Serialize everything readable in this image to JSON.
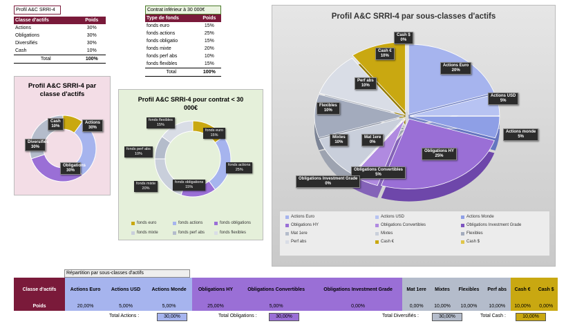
{
  "table1": {
    "title": "Profil A&C SRRI-4",
    "headers": [
      "Classe d'actifs",
      "Poids"
    ],
    "rows": [
      [
        "Actions",
        "30%"
      ],
      [
        "Obligations",
        "30%"
      ],
      [
        "Diversifiés",
        "30%"
      ],
      [
        "Cash",
        "10%"
      ]
    ],
    "total": [
      "Total",
      "100%"
    ]
  },
  "table2": {
    "title": "Contrat inférieur à 30 000€",
    "headers": [
      "Type de fonds",
      "Poids"
    ],
    "rows": [
      [
        "fonds euro",
        "15%"
      ],
      [
        "fonds actions",
        "25%"
      ],
      [
        "fonds obligatio",
        "15%"
      ],
      [
        "fonds mixte",
        "20%"
      ],
      [
        "fonds perf abs",
        "10%"
      ],
      [
        "fonds flexibles",
        "15%"
      ]
    ],
    "total": [
      "Total",
      "100%"
    ]
  },
  "chart1": {
    "title": "Profil A&C SRRI-4 par classe d'actifs",
    "labels": [
      "Cash",
      "Actions",
      "Obligations",
      "Diversifiés"
    ],
    "values_text": [
      "10%",
      "30%",
      "30%",
      "30%"
    ]
  },
  "chart2": {
    "title": "Profil A&C SRRI-4 pour contrat < 30 000€",
    "labels": [
      "fonds euro",
      "fonds actions",
      "fonds obligations",
      "fonds mixte",
      "fonds perf abs",
      "fonds flexibles"
    ],
    "values_text": [
      "15%",
      "25%",
      "15%",
      "20%",
      "10%",
      "15%"
    ],
    "legend": [
      "fonds euro",
      "fonds actions",
      "fonds obligations",
      "fonds mixte",
      "fonds perf abs",
      "fonds flexibles"
    ]
  },
  "chart3": {
    "title": "Profil A&C SRRI-4 par sous-classes d'actifs",
    "labels": [
      "Actions Euro",
      "Actions USD",
      "Actions monde",
      "Obligations HY",
      "Obligations Convertibles",
      "Obligations Investment Grade",
      "Mat 1ere",
      "Mixtes",
      "Flexibles",
      "Perf abs",
      "Cash €",
      "Cash $"
    ],
    "values_text": [
      "20%",
      "5%",
      "5%",
      "25%",
      "5%",
      "0%",
      "0%",
      "10%",
      "10%",
      "10%",
      "10%",
      "0%"
    ],
    "legend": [
      "Actions Euro",
      "Actions USD",
      "Actions Monde",
      "Obligations HY",
      "Obligations Convertibles",
      "Obligations Investment Grade",
      "Mat 1ere",
      "Mixtes",
      "Flexibles",
      "Perf abs",
      "Cash €",
      "Cash $"
    ]
  },
  "chart_data": [
    {
      "type": "pie",
      "title": "Profil A&C SRRI-4 par classe d'actifs",
      "categories": [
        "Cash",
        "Actions",
        "Obligations",
        "Diversifiés"
      ],
      "values": [
        10,
        30,
        30,
        30
      ]
    },
    {
      "type": "pie",
      "title": "Profil A&C SRRI-4 pour contrat < 30 000€",
      "categories": [
        "fonds euro",
        "fonds actions",
        "fonds obligations",
        "fonds mixte",
        "fonds perf abs",
        "fonds flexibles"
      ],
      "values": [
        15,
        25,
        15,
        20,
        10,
        15
      ]
    },
    {
      "type": "pie",
      "title": "Profil A&C SRRI-4 par sous-classes d'actifs",
      "categories": [
        "Actions Euro",
        "Actions USD",
        "Actions monde",
        "Obligations HY",
        "Obligations Convertibles",
        "Obligations Investment Grade",
        "Mat 1ere",
        "Mixtes",
        "Flexibles",
        "Perf abs",
        "Cash €",
        "Cash $"
      ],
      "values": [
        20,
        5,
        5,
        25,
        5,
        0,
        0,
        10,
        10,
        10,
        10,
        0
      ]
    }
  ],
  "bottom_table": {
    "caption": "Répartition par sous-classes d'actifs",
    "row_label_1": "Classe d'actifs",
    "row_label_2": "Poids",
    "columns": [
      "Actions Euro",
      "Actions USD",
      "Actions Monde",
      "Obligations HY",
      "Obligations Convertibles",
      "Obligations Investment Grade",
      "Mat 1ere",
      "Mixtes",
      "Flexibles",
      "Perf abs",
      "Cash €",
      "Cash $"
    ],
    "values": [
      "20,00%",
      "5,00%",
      "5,00%",
      "25,00%",
      "5,00%",
      "0,00%",
      "0,00%",
      "10,00%",
      "10,00%",
      "10,00%",
      "10,00%",
      "0,00%"
    ],
    "totals": [
      {
        "label": "Total Actions :",
        "value": "30,00%"
      },
      {
        "label": "Total Obligations :",
        "value": "30,00%"
      },
      {
        "label": "Total Diversifiés :",
        "value": "30,00%"
      },
      {
        "label": "Total Cash :",
        "value": "10,00%"
      }
    ]
  },
  "colors": {
    "actions": "#a6b4ee",
    "obligations": "#9a6fd6",
    "diversifies": "#b4bccb",
    "cash": "#c9a811",
    "header": "#7a1a3a"
  }
}
